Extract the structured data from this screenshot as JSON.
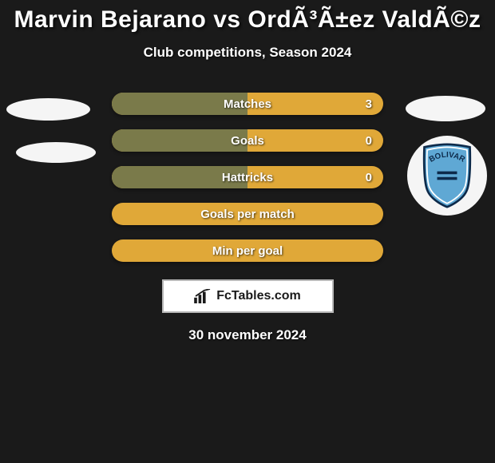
{
  "header": {
    "title": "Marvin Bejarano vs OrdÃ³Ã±ez ValdÃ©z",
    "subtitle": "Club competitions, Season 2024"
  },
  "stats": [
    {
      "label": "Matches",
      "value_right": "3",
      "bg": "#e0a838",
      "half_fill": true
    },
    {
      "label": "Goals",
      "value_right": "0",
      "bg": "#e0a838",
      "half_fill": true
    },
    {
      "label": "Hattricks",
      "value_right": "0",
      "bg": "#e0a838",
      "half_fill": true
    },
    {
      "label": "Goals per match",
      "value_right": "",
      "bg": "#e0a838",
      "half_fill": false
    },
    {
      "label": "Min per goal",
      "value_right": "",
      "bg": "#e0a838",
      "half_fill": false
    }
  ],
  "club_badge": {
    "name": "BOLIVAR",
    "shield_fill": "#5fa8d4",
    "shield_border": "#0d2a4a",
    "text_color": "#0d2a4a"
  },
  "branding": {
    "text": "FcTables.com",
    "icon_color": "#1a1a1a"
  },
  "footer_date": "30 november 2024",
  "colors": {
    "page_bg": "#1a1a1a",
    "row_left_fill": "#7a7a4a",
    "badge_bg": "#f5f5f5",
    "text": "#ffffff"
  }
}
